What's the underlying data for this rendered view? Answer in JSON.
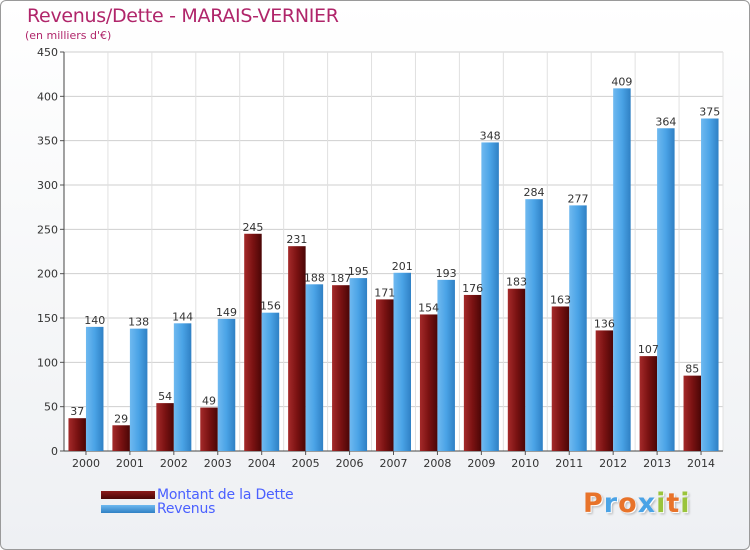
{
  "chart_data": {
    "type": "bar",
    "title": "Revenus/Dette - MARAIS-VERNIER",
    "subtitle": "(en milliers d'€)",
    "categories": [
      "2000",
      "2001",
      "2002",
      "2003",
      "2004",
      "2005",
      "2006",
      "2007",
      "2008",
      "2009",
      "2010",
      "2011",
      "2012",
      "2013",
      "2014"
    ],
    "series": [
      {
        "name": "Montant de la Dette",
        "color": "#8b1a1a",
        "values": [
          37,
          29,
          54,
          49,
          245,
          231,
          187,
          171,
          154,
          176,
          183,
          163,
          136,
          107,
          85
        ]
      },
      {
        "name": "Revenus",
        "color": "#4aa3e6",
        "values": [
          140,
          138,
          144,
          149,
          156,
          188,
          195,
          201,
          193,
          348,
          284,
          277,
          409,
          364,
          375
        ]
      }
    ],
    "yticks": [
      0,
      50,
      100,
      150,
      200,
      250,
      300,
      350,
      400,
      450
    ],
    "ylim": [
      0,
      450
    ],
    "grid": true,
    "legend": "bottom-left"
  },
  "logo": {
    "letters": [
      "P",
      "r",
      "o",
      "x",
      "i",
      "t",
      "i"
    ],
    "colors": [
      "#e8732a",
      "#4aa3e6",
      "#e8732a",
      "#4aa3e6",
      "#9ac43c",
      "#e8732a",
      "#9ac43c"
    ]
  }
}
